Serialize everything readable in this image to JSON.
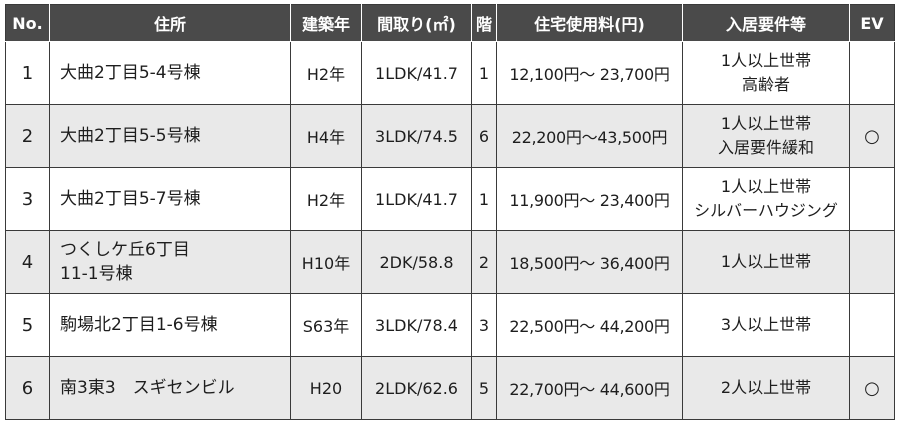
{
  "table": {
    "headers": {
      "no": "No.",
      "address": "住所",
      "built": "建築年",
      "layout": "間取り(㎡)",
      "floor": "階",
      "fee": "住宅使用料(円)",
      "requirements": "入居要件等",
      "ev": "EV"
    },
    "rows": [
      {
        "no": "1",
        "address": [
          "大曲2丁目5-4号棟"
        ],
        "built": "H2年",
        "layout": "1LDK/41.7",
        "floor": "1",
        "fee": "12,100円〜 23,700円",
        "requirements": [
          "1人以上世帯",
          "高齢者"
        ],
        "ev": ""
      },
      {
        "no": "2",
        "address": [
          "大曲2丁目5-5号棟"
        ],
        "built": "H4年",
        "layout": "3LDK/74.5",
        "floor": "6",
        "fee": "22,200円〜43,500円",
        "requirements": [
          "1人以上世帯",
          "入居要件緩和"
        ],
        "ev": "○"
      },
      {
        "no": "3",
        "address": [
          "大曲2丁目5-7号棟"
        ],
        "built": "H2年",
        "layout": "1LDK/41.7",
        "floor": "1",
        "fee": "11,900円〜 23,400円",
        "requirements": [
          "1人以上世帯",
          "シルバーハウジング"
        ],
        "ev": ""
      },
      {
        "no": "4",
        "address": [
          "つくしケ丘6丁目",
          "11-1号棟"
        ],
        "built": "H10年",
        "layout": "2DK/58.8",
        "floor": "2",
        "fee": "18,500円〜 36,400円",
        "requirements": [
          "1人以上世帯"
        ],
        "ev": ""
      },
      {
        "no": "5",
        "address": [
          "駒場北2丁目1-6号棟"
        ],
        "built": "S63年",
        "layout": "3LDK/78.4",
        "floor": "3",
        "fee": "22,500円〜 44,200円",
        "requirements": [
          "3人以上世帯"
        ],
        "ev": ""
      },
      {
        "no": "6",
        "address": [
          "南3東3　スギセンビル"
        ],
        "built": "H20",
        "layout": "2LDK/62.6",
        "floor": "5",
        "fee": "22,700円〜 44,600円",
        "requirements": [
          "2人以上世帯"
        ],
        "ev": "○"
      }
    ]
  },
  "colors": {
    "header_bg": "#4a4a4a",
    "header_text": "#ffffff",
    "shaded_row": "#e9e9e9",
    "border": "#3a3a3a"
  }
}
